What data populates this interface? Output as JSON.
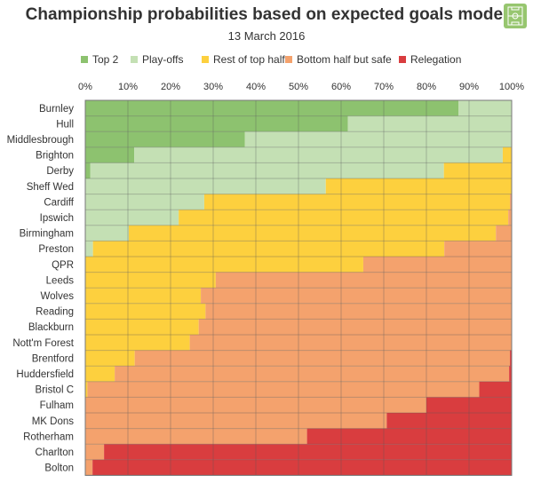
{
  "header": {
    "logo_icon": "pitch-logo-icon"
  },
  "chart_data": {
    "type": "bar",
    "orientation": "horizontal",
    "stacked": true,
    "title": "Championship probabilities based on expected goals model",
    "subtitle": "13 March 2016",
    "xlim": [
      0,
      100
    ],
    "x_ticks": [
      "0%",
      "10%",
      "20%",
      "30%",
      "40%",
      "50%",
      "60%",
      "70%",
      "80%",
      "90%",
      "100%"
    ],
    "legend_position": "top",
    "grid": true,
    "categories": [
      "Burnley",
      "Hull",
      "Middlesbrough",
      "Brighton",
      "Derby",
      "Sheff Wed",
      "Cardiff",
      "Ipswich",
      "Birmingham",
      "Preston",
      "QPR",
      "Leeds",
      "Wolves",
      "Reading",
      "Blackburn",
      "Nott'm Forest",
      "Brentford",
      "Huddersfield",
      "Bristol C",
      "Fulham",
      "MK Dons",
      "Rotherham",
      "Charlton",
      "Bolton"
    ],
    "series": [
      {
        "name": "Top 2",
        "color": "#8dc26f",
        "values": [
          87.5,
          61.6,
          37.4,
          11.5,
          1.2,
          0,
          0,
          0,
          0,
          0,
          0,
          0,
          0,
          0,
          0,
          0,
          0,
          0,
          0,
          0,
          0,
          0,
          0,
          0
        ]
      },
      {
        "name": "Play-offs",
        "color": "#c4e0b4",
        "values": [
          12.5,
          38.4,
          62.6,
          86.4,
          82.9,
          56.4,
          27.9,
          21.9,
          10.2,
          1.8,
          0,
          0,
          0,
          0,
          0,
          0,
          0,
          0,
          0,
          0,
          0,
          0,
          0,
          0
        ]
      },
      {
        "name": "Rest of top half",
        "color": "#fdd03e",
        "values": [
          0,
          0,
          0,
          2.1,
          15.9,
          43.6,
          71.7,
          77.3,
          86.1,
          82.4,
          65.2,
          30.6,
          27.1,
          28.2,
          26.6,
          24.5,
          11.6,
          6.9,
          0.5,
          0,
          0,
          0,
          0,
          0
        ]
      },
      {
        "name": "Bottom half but safe",
        "color": "#f4a26d",
        "values": [
          0,
          0,
          0,
          0,
          0,
          0,
          0.4,
          0.8,
          3.7,
          15.8,
          34.8,
          69.4,
          72.9,
          71.8,
          73.4,
          75.5,
          88.0,
          92.5,
          91.9,
          80.0,
          70.7,
          52.0,
          4.4,
          1.7
        ]
      },
      {
        "name": "Relegation",
        "color": "#d93d3f",
        "values": [
          0,
          0,
          0,
          0,
          0,
          0,
          0,
          0,
          0,
          0,
          0,
          0,
          0,
          0,
          0,
          0,
          0.4,
          0.6,
          7.6,
          20.0,
          29.3,
          48.0,
          95.6,
          98.3
        ]
      }
    ]
  }
}
